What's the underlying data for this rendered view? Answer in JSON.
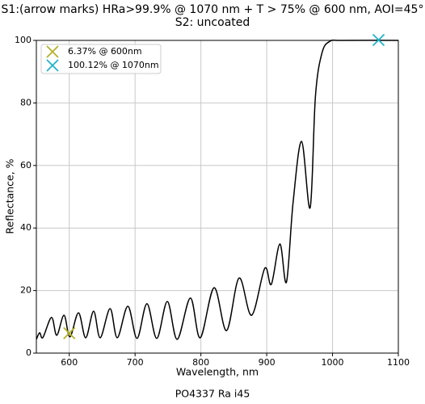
{
  "chart_data": {
    "type": "line",
    "title": "S1:(arrow marks) HRa>99.9% @ 1070 nm + T > 75% @ 600 nm, AOI=45°",
    "subtitle": "S2: uncoated",
    "x_label": "Wavelength, nm",
    "y_label": "Reflectance, %",
    "footer": "PO4337 Ra i45",
    "xlim": [
      550,
      1100
    ],
    "ylim": [
      0,
      100
    ],
    "xticks": [
      600,
      700,
      800,
      900,
      1000,
      1100
    ],
    "yticks": [
      0,
      20,
      40,
      60,
      80,
      100
    ],
    "grid": true,
    "legend": "upper left",
    "series": [
      {
        "color": "#000000",
        "x": [
          550,
          555,
          560,
          573,
          581,
          592,
          601,
          614,
          625,
          637,
          647,
          662,
          673,
          689,
          703,
          718,
          733,
          749,
          764,
          784,
          799,
          820,
          839,
          858,
          877,
          897,
          907,
          920,
          930,
          940,
          953,
          966,
          974,
          984,
          996,
          1015,
          1100
        ],
        "values": [
          4.4,
          6.5,
          5,
          11.4,
          5.7,
          12.1,
          5.2,
          12.9,
          4.9,
          13.4,
          4.9,
          14.2,
          4.9,
          15,
          4.7,
          15.8,
          4.7,
          16.5,
          4.4,
          17.6,
          4.9,
          20.9,
          7.2,
          24,
          12.1,
          27.1,
          22,
          34.9,
          22.7,
          48,
          67.7,
          46.5,
          82,
          96,
          99.7,
          100,
          100
        ]
      }
    ],
    "markers": [
      {
        "name": "6.37% @ 600nm",
        "color": "#b5b02a",
        "x": 600,
        "y": 6.37
      },
      {
        "name": "100.12% @ 1070nm",
        "color": "#1fb4c8",
        "x": 1070,
        "y": 100.12
      }
    ]
  }
}
